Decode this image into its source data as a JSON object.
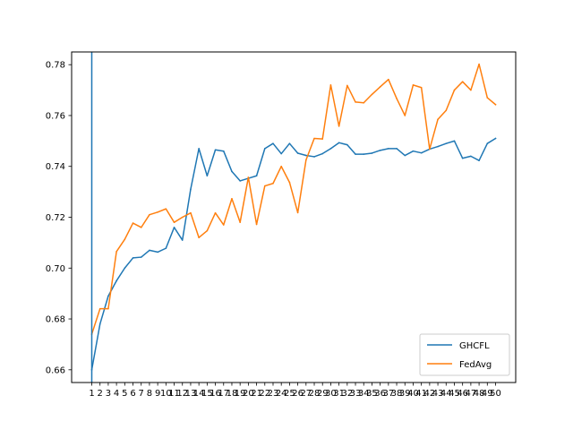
{
  "chart_data": {
    "type": "line",
    "title": "",
    "xlabel": "",
    "ylabel": "",
    "x": [
      1,
      2,
      3,
      4,
      5,
      6,
      7,
      8,
      9,
      10,
      11,
      12,
      13,
      14,
      15,
      16,
      17,
      18,
      19,
      20,
      21,
      22,
      23,
      24,
      25,
      26,
      27,
      28,
      29,
      30,
      31,
      32,
      33,
      34,
      35,
      36,
      37,
      38,
      39,
      40,
      41,
      42,
      43,
      44,
      45,
      46,
      47,
      48,
      49,
      50
    ],
    "x_tick_labels": [
      "1",
      "2",
      "3",
      "4",
      "5",
      "6",
      "7",
      "8",
      "9",
      "10",
      "11",
      "12",
      "13",
      "14",
      "15",
      "16",
      "17",
      "18",
      "19",
      "20",
      "21",
      "22",
      "23",
      "24",
      "25",
      "26",
      "27",
      "28",
      "29",
      "30",
      "31",
      "32",
      "33",
      "34",
      "35",
      "36",
      "37",
      "38",
      "39",
      "40",
      "41",
      "42",
      "43",
      "44",
      "45",
      "46",
      "47",
      "48",
      "49",
      "50"
    ],
    "ylim": [
      0.655,
      0.785
    ],
    "y_ticks": [
      0.66,
      0.68,
      0.7,
      0.72,
      0.74,
      0.76,
      0.78
    ],
    "y_tick_labels": [
      "0.66",
      "0.68",
      "0.70",
      "0.72",
      "0.74",
      "0.76",
      "0.78"
    ],
    "grid": false,
    "legend_position": "lower-right",
    "series": [
      {
        "name": "GHCFL",
        "color": "#1f77b4",
        "values": [
          0.66,
          0.678,
          0.689,
          0.695,
          0.7,
          0.704,
          0.7043,
          0.707,
          0.7063,
          0.7078,
          0.716,
          0.711,
          0.731,
          0.747,
          0.7363,
          0.7465,
          0.746,
          0.738,
          0.7343,
          0.7353,
          0.7363,
          0.747,
          0.749,
          0.745,
          0.749,
          0.7452,
          0.7443,
          0.7438,
          0.745,
          0.747,
          0.7493,
          0.7485,
          0.7448,
          0.7448,
          0.7452,
          0.7463,
          0.747,
          0.747,
          0.7443,
          0.746,
          0.7453,
          0.7468,
          0.7478,
          0.749,
          0.75,
          0.7432,
          0.744,
          0.7423,
          0.749,
          0.751
        ]
      },
      {
        "name": "FedAvg",
        "color": "#ff7f0e",
        "values": [
          0.674,
          0.684,
          0.684,
          0.7065,
          0.7113,
          0.7177,
          0.716,
          0.721,
          0.722,
          0.7233,
          0.718,
          0.72,
          0.7217,
          0.712,
          0.7147,
          0.7217,
          0.717,
          0.7273,
          0.718,
          0.7357,
          0.7172,
          0.7323,
          0.7333,
          0.74,
          0.7337,
          0.7218,
          0.7425,
          0.751,
          0.7508,
          0.772,
          0.7558,
          0.7718,
          0.7653,
          0.765,
          0.7683,
          0.7713,
          0.7742,
          0.7667,
          0.76,
          0.772,
          0.771,
          0.7468,
          0.7585,
          0.762,
          0.77,
          0.7733,
          0.77,
          0.7802,
          0.767,
          0.7643
        ]
      }
    ]
  }
}
